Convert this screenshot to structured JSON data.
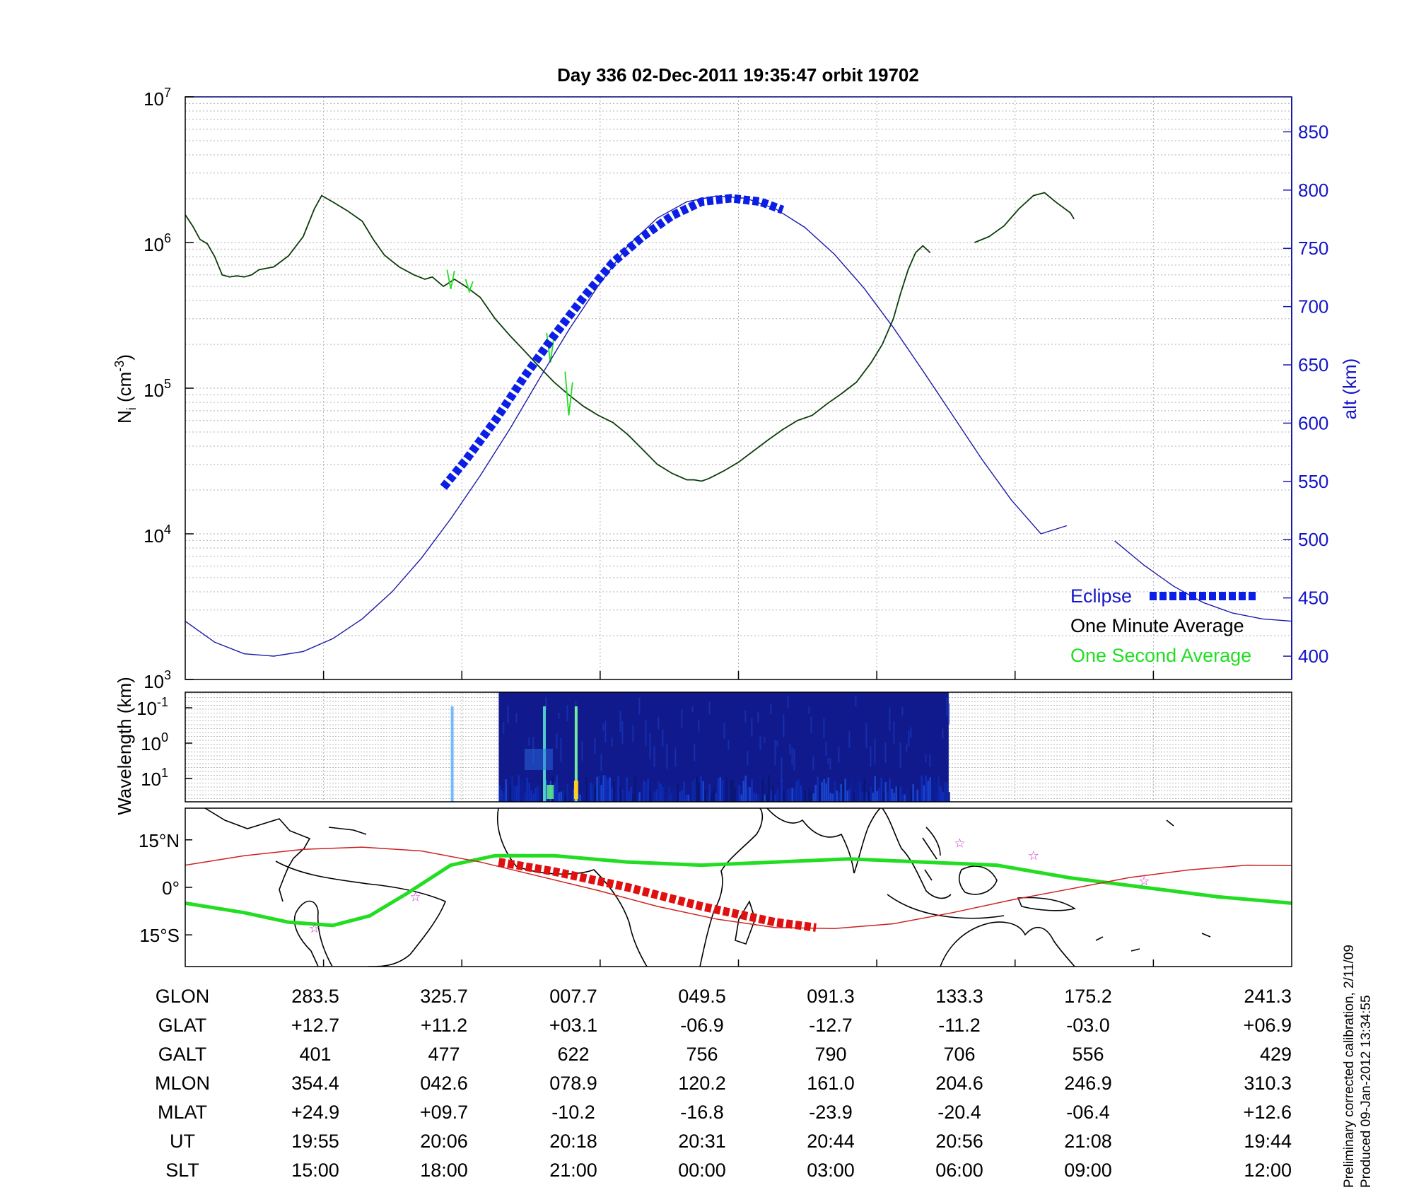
{
  "chart_data": [
    {
      "type": "line",
      "title": "Day 336  02-Dec-2011 19:35:47   orbit 19702",
      "y_axis": {
        "scale": "log",
        "ylim": [
          1000,
          10000000
        ],
        "tick_bases": [
          "10",
          "10",
          "10",
          "10",
          "10"
        ],
        "tick_exponents": [
          "3",
          "4",
          "5",
          "6",
          "7"
        ],
        "label_main": "N",
        "label_sub": "i",
        "label_unit_open": " (cm",
        "label_unit_exp": "-3",
        "label_unit_close": ")"
      },
      "y2_axis": {
        "label": "alt (km)",
        "ylim": [
          380,
          880
        ],
        "ticks": [
          "400",
          "450",
          "500",
          "550",
          "600",
          "650",
          "700",
          "750",
          "800",
          "850"
        ],
        "color": "#1515c8"
      },
      "x_axis": {
        "ticks": 8,
        "grid": true
      },
      "series": [
        {
          "name": "One Minute Average",
          "color": "#0b3d0b",
          "segments": [
            [
              [
                0,
                1550000
              ],
              [
                0.1,
                1300000
              ],
              [
                0.2,
                1050000
              ],
              [
                0.3,
                980000
              ],
              [
                0.4,
                800000
              ],
              [
                0.5,
                600000
              ],
              [
                0.6,
                580000
              ],
              [
                0.7,
                590000
              ],
              [
                0.8,
                580000
              ],
              [
                0.9,
                600000
              ],
              [
                1.0,
                650000
              ],
              [
                1.2,
                680000
              ],
              [
                1.4,
                810000
              ],
              [
                1.6,
                1100000
              ],
              [
                1.75,
                1700000
              ],
              [
                1.85,
                2100000
              ],
              [
                2.0,
                1900000
              ],
              [
                2.2,
                1650000
              ],
              [
                2.4,
                1400000
              ],
              [
                2.55,
                1050000
              ],
              [
                2.7,
                820000
              ],
              [
                2.9,
                680000
              ],
              [
                3.1,
                600000
              ],
              [
                3.25,
                560000
              ],
              [
                3.35,
                580000
              ],
              [
                3.5,
                500000
              ],
              [
                3.65,
                560000
              ],
              [
                3.8,
                500000
              ],
              [
                4.0,
                420000
              ],
              [
                4.2,
                300000
              ],
              [
                4.4,
                230000
              ],
              [
                4.6,
                180000
              ],
              [
                4.8,
                140000
              ],
              [
                5.0,
                110000
              ],
              [
                5.2,
                90000
              ],
              [
                5.4,
                75000
              ],
              [
                5.6,
                65000
              ],
              [
                5.8,
                58000
              ],
              [
                6.0,
                48000
              ],
              [
                6.2,
                38000
              ],
              [
                6.4,
                30000
              ],
              [
                6.6,
                26000
              ],
              [
                6.8,
                23500
              ],
              [
                6.9,
                23500
              ],
              [
                7.0,
                23000
              ],
              [
                7.1,
                24000
              ],
              [
                7.3,
                27000
              ],
              [
                7.5,
                31000
              ],
              [
                7.7,
                37000
              ],
              [
                7.9,
                44000
              ],
              [
                8.1,
                52000
              ],
              [
                8.3,
                60000
              ],
              [
                8.5,
                65000
              ],
              [
                8.7,
                78000
              ],
              [
                8.9,
                92000
              ],
              [
                9.1,
                110000
              ],
              [
                9.3,
                150000
              ],
              [
                9.45,
                200000
              ],
              [
                9.6,
                300000
              ],
              [
                9.7,
                450000
              ],
              [
                9.8,
                650000
              ],
              [
                9.9,
                850000
              ],
              [
                10.0,
                950000
              ],
              [
                10.1,
                850000
              ]
            ],
            [
              [
                10.7,
                1000000
              ],
              [
                10.9,
                1100000
              ],
              [
                11.1,
                1300000
              ],
              [
                11.3,
                1700000
              ],
              [
                11.5,
                2100000
              ],
              [
                11.65,
                2200000
              ],
              [
                11.8,
                1900000
              ],
              [
                12.0,
                1600000
              ],
              [
                12.05,
                1450000
              ]
            ]
          ]
        },
        {
          "name": "One Second Average",
          "color": "#22dd22",
          "segments": [
            [
              [
                3.55,
                650000
              ],
              [
                3.6,
                480000
              ],
              [
                3.65,
                640000
              ]
            ],
            [
              [
                3.8,
                560000
              ],
              [
                3.85,
                460000
              ],
              [
                3.9,
                540000
              ]
            ],
            [
              [
                4.9,
                240000
              ],
              [
                4.95,
                150000
              ],
              [
                5.0,
                230000
              ]
            ],
            [
              [
                5.15,
                130000
              ],
              [
                5.2,
                65000
              ],
              [
                5.25,
                110000
              ]
            ]
          ]
        },
        {
          "name": "alt",
          "axis": "y2",
          "color": "#1a1aa8",
          "segments": [
            [
              [
                0,
                430
              ],
              [
                0.4,
                412
              ],
              [
                0.8,
                402
              ],
              [
                1.2,
                400
              ],
              [
                1.6,
                404
              ],
              [
                2.0,
                415
              ],
              [
                2.4,
                432
              ],
              [
                2.8,
                455
              ],
              [
                3.2,
                484
              ],
              [
                3.6,
                518
              ],
              [
                4.0,
                555
              ],
              [
                4.4,
                595
              ],
              [
                4.8,
                638
              ],
              [
                5.2,
                680
              ],
              [
                5.6,
                718
              ],
              [
                6.0,
                752
              ],
              [
                6.4,
                776
              ],
              [
                6.8,
                790
              ],
              [
                7.2,
                795
              ],
              [
                7.6,
                793
              ],
              [
                8.0,
                784
              ],
              [
                8.4,
                768
              ],
              [
                8.8,
                745
              ],
              [
                9.2,
                716
              ],
              [
                9.6,
                682
              ],
              [
                10.0,
                645
              ],
              [
                10.4,
                607
              ],
              [
                10.8,
                569
              ],
              [
                11.2,
                534
              ],
              [
                11.6,
                505
              ],
              [
                11.95,
                512
              ]
            ],
            [
              [
                12.6,
                499
              ],
              [
                13.0,
                478
              ],
              [
                13.4,
                460
              ],
              [
                13.8,
                446
              ],
              [
                14.2,
                437
              ],
              [
                14.6,
                432
              ],
              [
                15.0,
                430
              ]
            ]
          ]
        },
        {
          "name": "Eclipse",
          "axis": "y2",
          "color": "#0a1ee6",
          "style": "thick-dashed",
          "points": [
            [
              3.5,
              545
            ],
            [
              3.8,
              568
            ],
            [
              4.2,
              602
            ],
            [
              4.6,
              640
            ],
            [
              5.0,
              675
            ],
            [
              5.4,
              708
            ],
            [
              5.8,
              738
            ],
            [
              6.2,
              760
            ],
            [
              6.6,
              778
            ],
            [
              7.0,
              790
            ],
            [
              7.4,
              793
            ],
            [
              7.8,
              790
            ],
            [
              8.1,
              783
            ]
          ]
        }
      ],
      "legend": {
        "placement": "bottom-right",
        "entries": [
          "Eclipse",
          "One Minute Average",
          "One Second Average"
        ]
      }
    },
    {
      "type": "heatmap",
      "y_label": "Wavelength (km)",
      "y_tick_bases": [
        "10",
        "10",
        "10"
      ],
      "y_tick_exponents": [
        "-1",
        "0",
        "1"
      ],
      "y_scale": "log",
      "colormap": "jet",
      "data_extent_x": [
        4.25,
        10.35
      ]
    },
    {
      "type": "scatter",
      "y_tick_labels": [
        "15°N",
        "0°",
        "15°S"
      ],
      "ylim": [
        -25,
        25
      ],
      "map": "world coastlines",
      "series": [
        {
          "name": "magnetic equator",
          "color": "#22dd22",
          "x": [
            0,
            0.8,
            1.4,
            2.0,
            2.5,
            3.0,
            3.6,
            4.2,
            5.0,
            6.0,
            7.0,
            8.0,
            9.0,
            10.0,
            11.0,
            12.0,
            13.0,
            14.0,
            15.0
          ],
          "y": [
            -5,
            -8,
            -11,
            -12,
            -9,
            -2,
            7,
            10,
            10,
            8,
            7,
            8,
            9,
            8,
            7,
            3,
            0,
            -3,
            -5
          ]
        },
        {
          "name": "orbit track",
          "color": "#cc2222",
          "x": [
            0,
            0.8,
            1.6,
            2.4,
            3.2,
            4.0,
            4.8,
            5.6,
            6.4,
            7.2,
            8.0,
            8.8,
            9.6,
            10.4,
            11.2,
            12.0,
            12.8,
            13.6,
            14.4,
            15.0
          ],
          "y": [
            7,
            10,
            12,
            12.7,
            11.5,
            8,
            3.5,
            -1,
            -6,
            -10,
            -12.7,
            -13,
            -11.5,
            -8,
            -4,
            -0.5,
            3.1,
            5.5,
            7,
            6.9
          ]
        },
        {
          "name": "Eclipse",
          "color": "#e01010",
          "x": [
            4.25,
            5.0,
            6.0,
            7.0,
            8.0,
            8.55
          ],
          "y": [
            8,
            5,
            0,
            -6,
            -11,
            -12.7
          ]
        },
        {
          "name": "stars",
          "color": "#cc33cc",
          "x": [
            1.75,
            3.12,
            10.5,
            11.5,
            13.0
          ],
          "y": [
            -13,
            -3,
            14,
            10,
            2
          ]
        }
      ]
    }
  ],
  "table": {
    "row_labels": [
      "GLON",
      "GLAT",
      "GALT",
      "MLON",
      "MLAT",
      "UT",
      "SLT"
    ],
    "columns": [
      [
        "283.5",
        "+12.7",
        "401",
        "354.4",
        "+24.9",
        "19:55",
        "15:00"
      ],
      [
        "325.7",
        "+11.2",
        "477",
        "042.6",
        "+09.7",
        "20:06",
        "18:00"
      ],
      [
        "007.7",
        "+03.1",
        "622",
        "078.9",
        "-10.2",
        "20:18",
        "21:00"
      ],
      [
        "049.5",
        "-06.9",
        "756",
        "120.2",
        "-16.8",
        "20:31",
        "00:00"
      ],
      [
        "091.3",
        "-12.7",
        "790",
        "161.0",
        "-23.9",
        "20:44",
        "03:00"
      ],
      [
        "133.3",
        "-11.2",
        "706",
        "204.6",
        "-20.4",
        "20:56",
        "06:00"
      ],
      [
        "175.2",
        "-03.0",
        "556",
        "246.9",
        "-06.4",
        "21:08",
        "09:00"
      ],
      [
        "241.3",
        "+06.9",
        "429",
        "310.3",
        "+12.6",
        "19:44",
        "12:00"
      ]
    ]
  },
  "footnote": {
    "line1": "Preliminary corrected calibration, 2/11/09",
    "line2": "Produced 09-Jan-2012 13:34:55"
  }
}
